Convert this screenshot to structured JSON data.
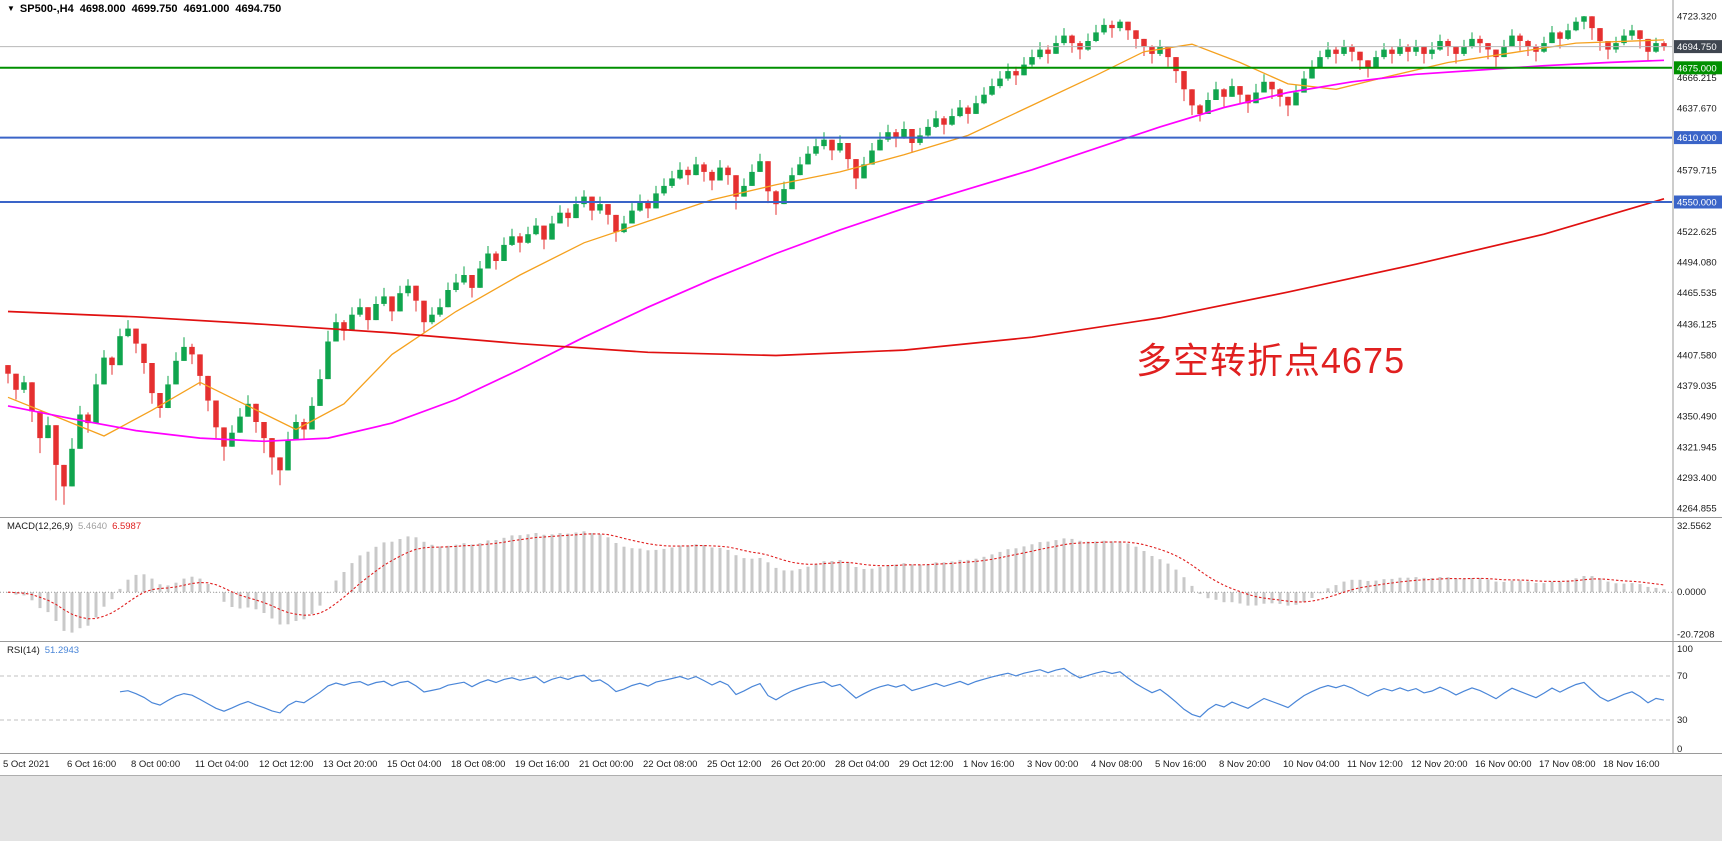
{
  "header": {
    "symbol_period": "SP500-,H4",
    "open": "4698.000",
    "high": "4699.750",
    "low": "4691.000",
    "close": "4694.750"
  },
  "annotation": {
    "text": "多空转折点4675",
    "color": "#e02020"
  },
  "chart_data": {
    "type": "candlestick",
    "symbol": "SP500-",
    "period": "H4",
    "up_color": "#10a54e",
    "down_color": "#e53030",
    "y_domain": [
      4256.5,
      4738.2
    ],
    "price_axis": {
      "labels": [
        {
          "text": "4723.320",
          "price": 4723.32
        },
        {
          "text": "4666.215",
          "price": 4666.215
        },
        {
          "text": "4637.670",
          "price": 4637.67
        },
        {
          "text": "4579.715",
          "price": 4579.715
        },
        {
          "text": "4522.625",
          "price": 4522.625
        },
        {
          "text": "4494.080",
          "price": 4494.08
        },
        {
          "text": "4465.535",
          "price": 4465.535
        },
        {
          "text": "4436.125",
          "price": 4436.125
        },
        {
          "text": "4407.580",
          "price": 4407.58
        },
        {
          "text": "4379.035",
          "price": 4379.035
        },
        {
          "text": "4350.490",
          "price": 4350.49
        },
        {
          "text": "4321.945",
          "price": 4321.945
        },
        {
          "text": "4293.400",
          "price": 4293.4
        },
        {
          "text": "4264.855",
          "price": 4264.855
        }
      ],
      "tags": [
        {
          "text": "4694.750",
          "price": 4694.75,
          "bg": "#3f4650"
        },
        {
          "text": "4675.000",
          "price": 4675.0,
          "bg": "#009000"
        },
        {
          "text": "4610.000",
          "price": 4610.0,
          "bg": "#3a64c8"
        },
        {
          "text": "4550.000",
          "price": 4550.0,
          "bg": "#3a64c8"
        }
      ]
    },
    "hlines": [
      {
        "name": "bid-price-line",
        "price": 4694.75,
        "color": "#b8b8b8",
        "width": 1
      },
      {
        "name": "level-line-4675",
        "price": 4675.0,
        "color": "#009000",
        "width": 2
      },
      {
        "name": "support-line-4610",
        "price": 4610.0,
        "color": "#3a64c8",
        "width": 2
      },
      {
        "name": "support-line-4550",
        "price": 4550.0,
        "color": "#3a64c8",
        "width": 2
      }
    ],
    "x_axis": {
      "bars_per_label": 8,
      "labels": [
        "5 Oct 2021",
        "6 Oct 16:00",
        "8 Oct 00:00",
        "11 Oct 04:00",
        "12 Oct 12:00",
        "13 Oct 20:00",
        "15 Oct 04:00",
        "18 Oct 08:00",
        "19 Oct 16:00",
        "21 Oct 00:00",
        "22 Oct 08:00",
        "25 Oct 12:00",
        "26 Oct 20:00",
        "28 Oct 04:00",
        "29 Oct 12:00",
        "1 Nov 16:00",
        "3 Nov 00:00",
        "4 Nov 08:00",
        "5 Nov 16:00",
        "8 Nov 20:00",
        "10 Nov 04:00",
        "11 Nov 12:00",
        "12 Nov 20:00",
        "16 Nov 00:00",
        "17 Nov 08:00",
        "18 Nov 16:00"
      ]
    },
    "candles": {
      "open_rule": "previous_close",
      "first_open": 4398,
      "closes": [
        4390,
        4375,
        4382,
        4355,
        4330,
        4342,
        4305,
        4285,
        4320,
        4352,
        4344,
        4380,
        4405,
        4398,
        4425,
        4432,
        4418,
        4400,
        4372,
        4358,
        4380,
        4402,
        4415,
        4408,
        4388,
        4365,
        4340,
        4322,
        4335,
        4350,
        4362,
        4345,
        4330,
        4312,
        4300,
        4328,
        4345,
        4338,
        4360,
        4385,
        4420,
        4438,
        4430,
        4445,
        4452,
        4440,
        4455,
        4462,
        4448,
        4465,
        4472,
        4458,
        4438,
        4445,
        4452,
        4468,
        4475,
        4482,
        4470,
        4488,
        4502,
        4495,
        4510,
        4518,
        4512,
        4520,
        4528,
        4515,
        4530,
        4540,
        4535,
        4548,
        4555,
        4542,
        4548,
        4538,
        4522,
        4530,
        4542,
        4550,
        4544,
        4558,
        4565,
        4572,
        4580,
        4575,
        4585,
        4578,
        4570,
        4582,
        4575,
        4555,
        4565,
        4578,
        4588,
        4560,
        4548,
        4562,
        4575,
        4585,
        4595,
        4602,
        4608,
        4598,
        4605,
        4590,
        4572,
        4585,
        4598,
        4608,
        4615,
        4610,
        4618,
        4605,
        4612,
        4620,
        4628,
        4622,
        4630,
        4638,
        4632,
        4642,
        4650,
        4658,
        4665,
        4672,
        4668,
        4678,
        4685,
        4692,
        4688,
        4698,
        4705,
        4698,
        4692,
        4700,
        4708,
        4715,
        4712,
        4718,
        4710,
        4702,
        4695,
        4688,
        4695,
        4685,
        4672,
        4655,
        4640,
        4632,
        4645,
        4655,
        4648,
        4658,
        4650,
        4642,
        4652,
        4662,
        4655,
        4648,
        4640,
        4652,
        4665,
        4675,
        4685,
        4692,
        4688,
        4695,
        4690,
        4682,
        4675,
        4685,
        4692,
        4688,
        4695,
        4690,
        4695,
        4688,
        4692,
        4700,
        4695,
        4688,
        4695,
        4702,
        4698,
        4692,
        4685,
        4695,
        4705,
        4700,
        4695,
        4690,
        4698,
        4708,
        4702,
        4710,
        4718,
        4723,
        4712,
        4700,
        4692,
        4698,
        4705,
        4710,
        4702,
        4690,
        4698,
        4694.75
      ],
      "highs": [
        4396,
        4385,
        4388,
        4368,
        4340,
        4350,
        4320,
        4296,
        4330,
        4360,
        4354,
        4390,
        4412,
        4406,
        4432,
        4440,
        4428,
        4412,
        4382,
        4368,
        4388,
        4410,
        4424,
        4418,
        4398,
        4378,
        4352,
        4332,
        4342,
        4358,
        4370,
        4356,
        4342,
        4324,
        4312,
        4336,
        4352,
        4348,
        4368,
        4394,
        4430,
        4446,
        4440,
        4452,
        4460,
        4450,
        4462,
        4470,
        4460,
        4472,
        4478,
        4468,
        4450,
        4452,
        4460,
        4475,
        4483,
        4490,
        4481,
        4495,
        4509,
        4504,
        4517,
        4525,
        4521,
        4527,
        4535,
        4524,
        4537,
        4547,
        4544,
        4555,
        4561,
        4552,
        4555,
        4547,
        4532,
        4537,
        4549,
        4557,
        4552,
        4565,
        4572,
        4579,
        4587,
        4583,
        4592,
        4587,
        4580,
        4589,
        4584,
        4567,
        4572,
        4585,
        4595,
        4573,
        4561,
        4569,
        4582,
        4592,
        4602,
        4609,
        4615,
        4607,
        4612,
        4600,
        4583,
        4592,
        4605,
        4615,
        4622,
        4618,
        4625,
        4615,
        4619,
        4627,
        4635,
        4630,
        4637,
        4645,
        4640,
        4649,
        4657,
        4665,
        4672,
        4679,
        4676,
        4685,
        4692,
        4699,
        4696,
        4705,
        4712,
        4706,
        4700,
        4707,
        4715,
        4721,
        4719,
        4720,
        4717,
        4709,
        4702,
        4696,
        4701,
        4693,
        4681,
        4663,
        4650,
        4641,
        4652,
        4662,
        4656,
        4665,
        4658,
        4650,
        4660,
        4669,
        4662,
        4656,
        4648,
        4659,
        4672,
        4682,
        4691,
        4699,
        4695,
        4701,
        4697,
        4690,
        4682,
        4691,
        4698,
        4695,
        4702,
        4697,
        4701,
        4695,
        4699,
        4706,
        4702,
        4695,
        4701,
        4708,
        4705,
        4698,
        4692,
        4701,
        4711,
        4707,
        4701,
        4697,
        4704,
        4714,
        4709,
        4716,
        4722,
        4723.3,
        4718,
        4707,
        4699,
        4704,
        4711,
        4715,
        4709,
        4697,
        4703,
        4699.75
      ],
      "lows": [
        4381,
        4366,
        4372,
        4345,
        4316,
        4330,
        4272,
        4268,
        4300,
        4341,
        4335,
        4370,
        4395,
        4389,
        4415,
        4424,
        4409,
        4390,
        4362,
        4349,
        4371,
        4393,
        4406,
        4399,
        4379,
        4355,
        4330,
        4309,
        4324,
        4341,
        4352,
        4335,
        4316,
        4296,
        4286,
        4315,
        4335,
        4329,
        4350,
        4375,
        4402,
        4427,
        4421,
        4436,
        4443,
        4431,
        4446,
        4453,
        4439,
        4455,
        4462,
        4448,
        4428,
        4436,
        4443,
        4459,
        4466,
        4473,
        4461,
        4479,
        4493,
        4487,
        4501,
        4509,
        4503,
        4511,
        4519,
        4506,
        4521,
        4531,
        4527,
        4539,
        4545,
        4533,
        4539,
        4529,
        4513,
        4521,
        4533,
        4541,
        4535,
        4549,
        4556,
        4563,
        4571,
        4566,
        4576,
        4569,
        4561,
        4573,
        4566,
        4543,
        4556,
        4569,
        4579,
        4549,
        4538,
        4553,
        4566,
        4576,
        4586,
        4593,
        4599,
        4589,
        4596,
        4581,
        4562,
        4576,
        4589,
        4599,
        4606,
        4601,
        4609,
        4596,
        4603,
        4611,
        4619,
        4613,
        4621,
        4629,
        4623,
        4633,
        4641,
        4649,
        4656,
        4663,
        4659,
        4669,
        4676,
        4683,
        4679,
        4689,
        4696,
        4689,
        4683,
        4691,
        4699,
        4706,
        4703,
        4709,
        4701,
        4693,
        4686,
        4679,
        4686,
        4676,
        4661,
        4644,
        4631,
        4625,
        4636,
        4646,
        4639,
        4649,
        4641,
        4633,
        4643,
        4653,
        4646,
        4639,
        4630,
        4643,
        4656,
        4666,
        4676,
        4683,
        4679,
        4686,
        4681,
        4673,
        4666,
        4676,
        4683,
        4679,
        4686,
        4681,
        4686,
        4679,
        4683,
        4691,
        4686,
        4679,
        4686,
        4693,
        4689,
        4683,
        4676,
        4686,
        4696,
        4691,
        4686,
        4681,
        4689,
        4699,
        4693,
        4701,
        4709,
        4711,
        4701,
        4691,
        4683,
        4689,
        4696,
        4701,
        4693,
        4681,
        4689,
        4691
      ]
    },
    "moving_averages": [
      {
        "name": "fast",
        "color": "#f5a11e",
        "width": 1.3,
        "points": [
          [
            0,
            4368
          ],
          [
            6,
            4350
          ],
          [
            12,
            4332
          ],
          [
            18,
            4356
          ],
          [
            24,
            4382
          ],
          [
            30,
            4360
          ],
          [
            36,
            4338
          ],
          [
            42,
            4362
          ],
          [
            48,
            4408
          ],
          [
            56,
            4448
          ],
          [
            64,
            4482
          ],
          [
            72,
            4512
          ],
          [
            80,
            4532
          ],
          [
            88,
            4552
          ],
          [
            96,
            4566
          ],
          [
            104,
            4578
          ],
          [
            112,
            4594
          ],
          [
            120,
            4612
          ],
          [
            128,
            4640
          ],
          [
            136,
            4668
          ],
          [
            142,
            4690
          ],
          [
            148,
            4697
          ],
          [
            154,
            4680
          ],
          [
            160,
            4660
          ],
          [
            166,
            4655
          ],
          [
            172,
            4666
          ],
          [
            180,
            4680
          ],
          [
            188,
            4689
          ],
          [
            196,
            4698
          ],
          [
            207,
            4701
          ]
        ]
      },
      {
        "name": "mid",
        "color": "#ff00ff",
        "width": 1.7,
        "points": [
          [
            0,
            4360
          ],
          [
            8,
            4348
          ],
          [
            16,
            4337
          ],
          [
            24,
            4330
          ],
          [
            32,
            4327
          ],
          [
            40,
            4330
          ],
          [
            48,
            4344
          ],
          [
            56,
            4366
          ],
          [
            64,
            4394
          ],
          [
            72,
            4424
          ],
          [
            80,
            4452
          ],
          [
            88,
            4478
          ],
          [
            96,
            4502
          ],
          [
            104,
            4524
          ],
          [
            112,
            4544
          ],
          [
            120,
            4562
          ],
          [
            128,
            4580
          ],
          [
            136,
            4600
          ],
          [
            144,
            4620
          ],
          [
            152,
            4638
          ],
          [
            160,
            4652
          ],
          [
            168,
            4662
          ],
          [
            176,
            4669
          ],
          [
            184,
            4673
          ],
          [
            192,
            4677
          ],
          [
            200,
            4680
          ],
          [
            207,
            4682
          ]
        ]
      },
      {
        "name": "slow",
        "color": "#e01010",
        "width": 1.7,
        "points": [
          [
            0,
            4448
          ],
          [
            16,
            4443
          ],
          [
            32,
            4436
          ],
          [
            48,
            4428
          ],
          [
            64,
            4418
          ],
          [
            80,
            4410
          ],
          [
            96,
            4407
          ],
          [
            112,
            4412
          ],
          [
            128,
            4424
          ],
          [
            144,
            4442
          ],
          [
            160,
            4466
          ],
          [
            176,
            4492
          ],
          [
            192,
            4520
          ],
          [
            207,
            4553
          ]
        ]
      }
    ],
    "macd": {
      "label": "MACD(12,26,9)",
      "value_main": "5.4640",
      "value_signal": "6.5987",
      "params": [
        12,
        26,
        9
      ],
      "y_domain": [
        -24,
        36
      ],
      "histogram_color": "#c9c9c9",
      "signal_color": "#e02020",
      "value_main_color": "#a0a0a0",
      "axis_labels": [
        {
          "text": "32.5562",
          "value": 32.5562
        },
        {
          "text": "0.0000",
          "value": 0
        },
        {
          "text": "-20.7208",
          "value": -20.7208
        }
      ]
    },
    "rsi": {
      "label": "RSI(14)",
      "value": "51.2943",
      "period": 14,
      "y_domain": [
        0,
        100
      ],
      "levels": [
        70,
        30
      ],
      "line_color": "#4a86d8",
      "axis_labels": [
        {
          "text": "100",
          "value": 100
        },
        {
          "text": "70",
          "value": 70
        },
        {
          "text": "30",
          "value": 30
        },
        {
          "text": "0",
          "value": 0
        }
      ]
    }
  }
}
